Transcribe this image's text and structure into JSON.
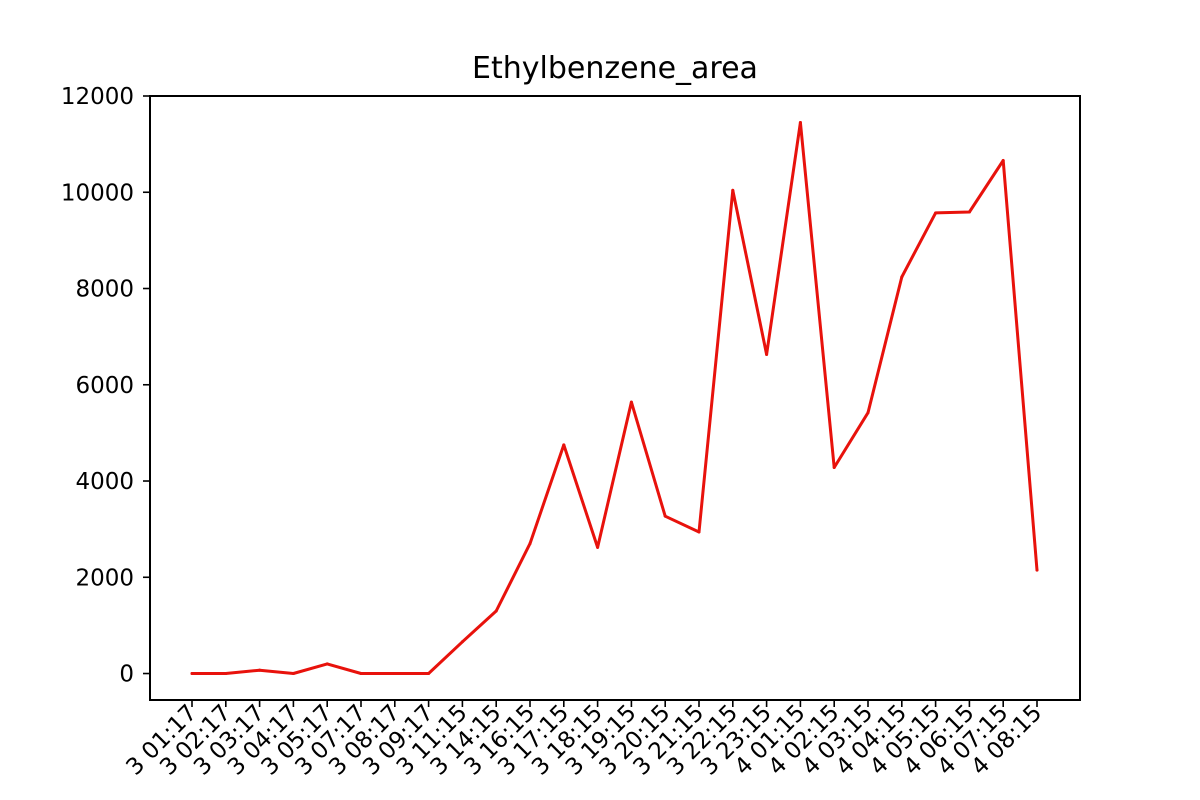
{
  "chart_data": {
    "type": "line",
    "title": "Ethylbenzene_area",
    "xlabel": "",
    "ylabel": "",
    "ylim": [
      -550,
      12000
    ],
    "yticks": [
      0,
      2000,
      4000,
      6000,
      8000,
      10000,
      12000
    ],
    "ytick_labels": [
      "0",
      "2000",
      "4000",
      "6000",
      "8000",
      "10000",
      "12000"
    ],
    "x": [
      "3 01:17",
      "3 02:17",
      "3 03:17",
      "3 04:17",
      "3 05:17",
      "3 07:17",
      "3 08:17",
      "3 09:17",
      "3 11:15",
      "3 14:15",
      "3 16:15",
      "3 17:15",
      "3 18:15",
      "3 19:15",
      "3 20:15",
      "3 21:15",
      "3 22:15",
      "3 23:15",
      "4 01:15",
      "4 02:15",
      "4 03:15",
      "4 04:15",
      "4 05:15",
      "4 06:15",
      "4 07:15",
      "4 08:15"
    ],
    "series": [
      {
        "color": "#e8120c",
        "values": [
          0,
          0,
          70,
          0,
          200,
          0,
          0,
          0,
          660,
          1300,
          2700,
          4750,
          2620,
          5640,
          3270,
          2940,
          10040,
          6630,
          11450,
          4280,
          5420,
          8240,
          9570,
          9590,
          10660,
          2150
        ]
      }
    ],
    "grid": false,
    "legend": "none"
  }
}
